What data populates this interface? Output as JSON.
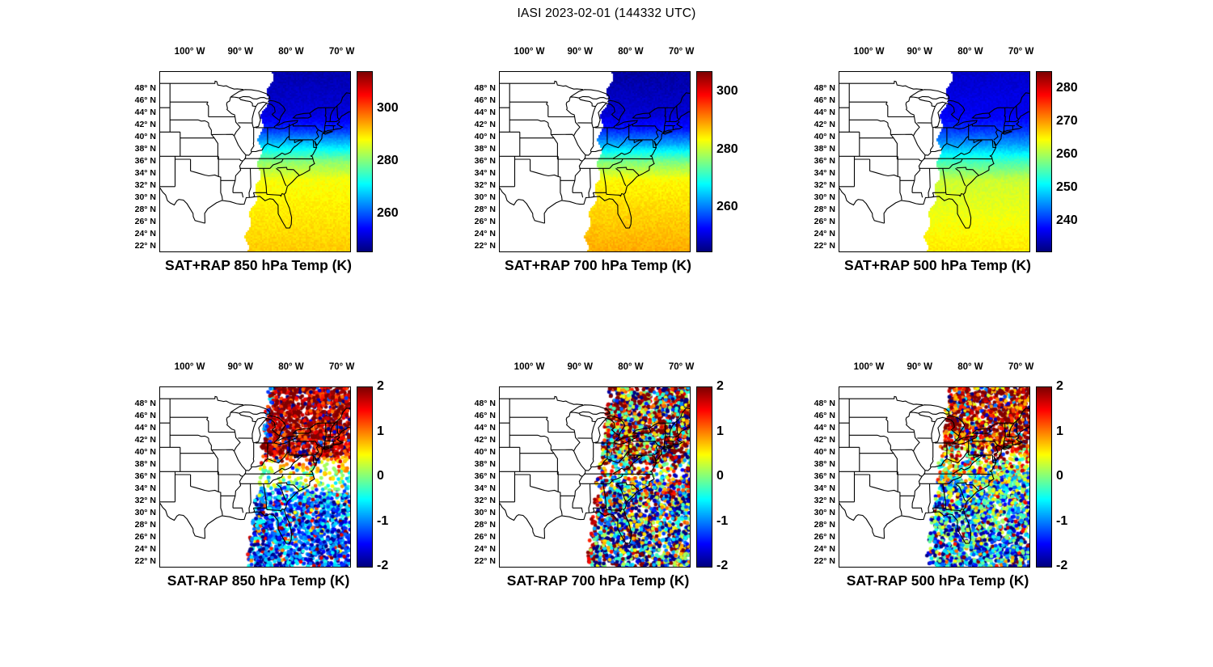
{
  "title": "IASI 2023-02-01 (144332 UTC)",
  "axes": {
    "lon_range": [
      -106,
      -68.5
    ],
    "lat_range": [
      21.3,
      50.9
    ],
    "lon_ticks": [
      {
        "value": -100,
        "label": "100° W"
      },
      {
        "value": -90,
        "label": "90° W"
      },
      {
        "value": -80,
        "label": "80° W"
      },
      {
        "value": -70,
        "label": "70° W"
      }
    ],
    "lat_ticks": [
      {
        "value": 48,
        "label": "48° N"
      },
      {
        "value": 46,
        "label": "46° N"
      },
      {
        "value": 44,
        "label": "44° N"
      },
      {
        "value": 42,
        "label": "42° N"
      },
      {
        "value": 40,
        "label": "40° N"
      },
      {
        "value": 38,
        "label": "38° N"
      },
      {
        "value": 36,
        "label": "36° N"
      },
      {
        "value": 34,
        "label": "34° N"
      },
      {
        "value": 32,
        "label": "32° N"
      },
      {
        "value": 30,
        "label": "30° N"
      },
      {
        "value": 28,
        "label": "28° N"
      },
      {
        "value": 26,
        "label": "26° N"
      },
      {
        "value": 24,
        "label": "24° N"
      },
      {
        "value": 22,
        "label": "22° N"
      }
    ]
  },
  "swath": {
    "top_lon": -84.3,
    "bottom_lon": -88.8
  },
  "chart_data": [
    {
      "id": "sat_plus_rap_850",
      "type": "heatmap",
      "style": "field",
      "title": "SAT+RAP 850 hPa Temp (K)",
      "units": "K",
      "colormap": "jet",
      "colorbar_range": [
        246,
        314
      ],
      "colorbar_ticks": [
        {
          "value": 300,
          "label": "300"
        },
        {
          "value": 280,
          "label": "280"
        },
        {
          "value": 260,
          "label": "260"
        }
      ],
      "lat_profile": [
        [
          21,
          292
        ],
        [
          33,
          288
        ],
        [
          36,
          281
        ],
        [
          39,
          268
        ],
        [
          41.5,
          257
        ],
        [
          44,
          252
        ],
        [
          51,
          249
        ]
      ],
      "noise": 1.2
    },
    {
      "id": "sat_plus_rap_700",
      "type": "heatmap",
      "style": "field",
      "title": "SAT+RAP 700 hPa Temp (K)",
      "units": "K",
      "colormap": "jet",
      "colorbar_range": [
        245,
        307
      ],
      "colorbar_ticks": [
        {
          "value": 300,
          "label": "300"
        },
        {
          "value": 280,
          "label": "280"
        },
        {
          "value": 260,
          "label": "260"
        }
      ],
      "lat_profile": [
        [
          21,
          289
        ],
        [
          33,
          284
        ],
        [
          36,
          276
        ],
        [
          39,
          263
        ],
        [
          41.5,
          254
        ],
        [
          44,
          250
        ],
        [
          51,
          247
        ]
      ],
      "noise": 1.2
    },
    {
      "id": "sat_plus_rap_500",
      "type": "heatmap",
      "style": "field",
      "title": "SAT+RAP 500 hPa Temp (K)",
      "units": "K",
      "colormap": "jet",
      "colorbar_range": [
        231,
        285
      ],
      "colorbar_ticks": [
        {
          "value": 280,
          "label": "280"
        },
        {
          "value": 270,
          "label": "270"
        },
        {
          "value": 260,
          "label": "260"
        },
        {
          "value": 250,
          "label": "250"
        },
        {
          "value": 240,
          "label": "240"
        }
      ],
      "lat_profile": [
        [
          21,
          266
        ],
        [
          33,
          262
        ],
        [
          36,
          255
        ],
        [
          39,
          246
        ],
        [
          41.5,
          240
        ],
        [
          44,
          237
        ],
        [
          51,
          235
        ]
      ],
      "noise": 0.9
    },
    {
      "id": "sat_minus_rap_850",
      "type": "scatter",
      "style": "scatter",
      "title": "SAT-RAP 850 hPa Temp (K)",
      "units": "K",
      "colormap": "jet",
      "colorbar_range": [
        -2,
        2
      ],
      "colorbar_ticks": [
        {
          "value": 2,
          "label": "2"
        },
        {
          "value": 1,
          "label": "1"
        },
        {
          "value": 0,
          "label": "0"
        },
        {
          "value": -1,
          "label": "-1"
        },
        {
          "value": -2,
          "label": "-2"
        }
      ],
      "lat_profile": [
        [
          21,
          -1.3
        ],
        [
          32,
          -1.2
        ],
        [
          35,
          -0.3
        ],
        [
          38,
          0.8
        ],
        [
          40,
          1.9
        ],
        [
          51,
          1.95
        ]
      ],
      "noise": 0.9,
      "flip_prob": 0.12,
      "sparse_band": [
        33.5,
        39.5,
        0.35
      ],
      "left_edge_cool_bias": true
    },
    {
      "id": "sat_minus_rap_700",
      "type": "scatter",
      "style": "scatter",
      "title": "SAT-RAP 700 hPa Temp (K)",
      "units": "K",
      "colormap": "jet",
      "colorbar_range": [
        -2,
        2
      ],
      "colorbar_ticks": [
        {
          "value": 2,
          "label": "2"
        },
        {
          "value": 1,
          "label": "1"
        },
        {
          "value": 0,
          "label": "0"
        },
        {
          "value": -1,
          "label": "-1"
        },
        {
          "value": -2,
          "label": "-2"
        }
      ],
      "lat_profile": [
        [
          21,
          -1.2
        ],
        [
          33,
          -1.0
        ],
        [
          36,
          0.2
        ],
        [
          40,
          1.6
        ],
        [
          51,
          1.7
        ]
      ],
      "noise": 2.2,
      "flip_prob": 0.28,
      "sparse_band": [
        35.5,
        38.5,
        0.5
      ],
      "left_edge_warm_bias": true
    },
    {
      "id": "sat_minus_rap_500",
      "type": "scatter",
      "style": "scatter",
      "title": "SAT-RAP 500 hPa Temp (K)",
      "units": "K",
      "colormap": "jet",
      "colorbar_range": [
        -2,
        2
      ],
      "colorbar_ticks": [
        {
          "value": 2,
          "label": "2"
        },
        {
          "value": 1,
          "label": "1"
        },
        {
          "value": 0,
          "label": "0"
        },
        {
          "value": -1,
          "label": "-1"
        },
        {
          "value": -2,
          "label": "-2"
        }
      ],
      "lat_profile": [
        [
          21,
          -1.1
        ],
        [
          34,
          -0.8
        ],
        [
          38,
          0.6
        ],
        [
          42,
          1.7
        ],
        [
          51,
          1.8
        ]
      ],
      "noise": 1.4,
      "flip_prob": 0.18,
      "sparse_band": [
        38,
        40.5,
        0.55
      ]
    }
  ]
}
